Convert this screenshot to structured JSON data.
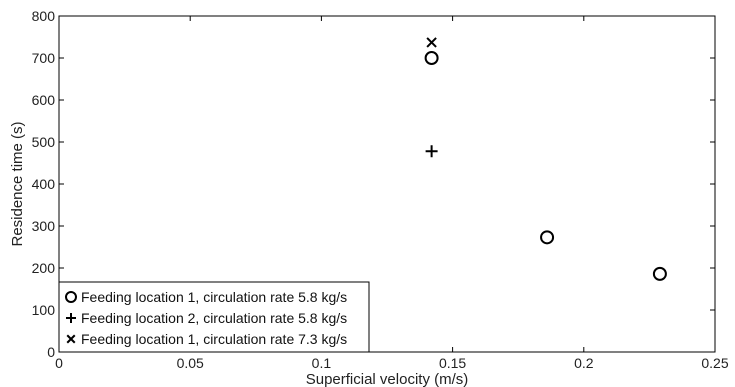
{
  "chart_data": {
    "type": "scatter",
    "xlabel": "Superficial velocity (m/s)",
    "ylabel": "Residence time (s)",
    "xlim": [
      0,
      0.25
    ],
    "ylim": [
      0,
      800
    ],
    "xticks": [
      0,
      0.05,
      0.1,
      0.15,
      0.2,
      0.25
    ],
    "xtick_labels": [
      "0",
      "0.05",
      "0.1",
      "0.15",
      "0.2",
      "0.25"
    ],
    "yticks": [
      0,
      100,
      200,
      300,
      400,
      500,
      600,
      700,
      800
    ],
    "ytick_labels": [
      "0",
      "100",
      "200",
      "300",
      "400",
      "500",
      "600",
      "700",
      "800"
    ],
    "grid": false,
    "legend_position": "bottom-left",
    "series": [
      {
        "name": "Feeding location 1, circulation rate 5.8 kg/s",
        "marker": "circle",
        "points": [
          {
            "x": 0.142,
            "y": 700
          },
          {
            "x": 0.186,
            "y": 273
          },
          {
            "x": 0.229,
            "y": 186
          }
        ]
      },
      {
        "name": "Feeding location 2, circulation rate 5.8 kg/s",
        "marker": "plus",
        "points": [
          {
            "x": 0.142,
            "y": 478
          }
        ]
      },
      {
        "name": "Feeding location 1, circulation rate 7.3 kg/s",
        "marker": "cross",
        "points": [
          {
            "x": 0.142,
            "y": 737
          }
        ]
      }
    ]
  }
}
